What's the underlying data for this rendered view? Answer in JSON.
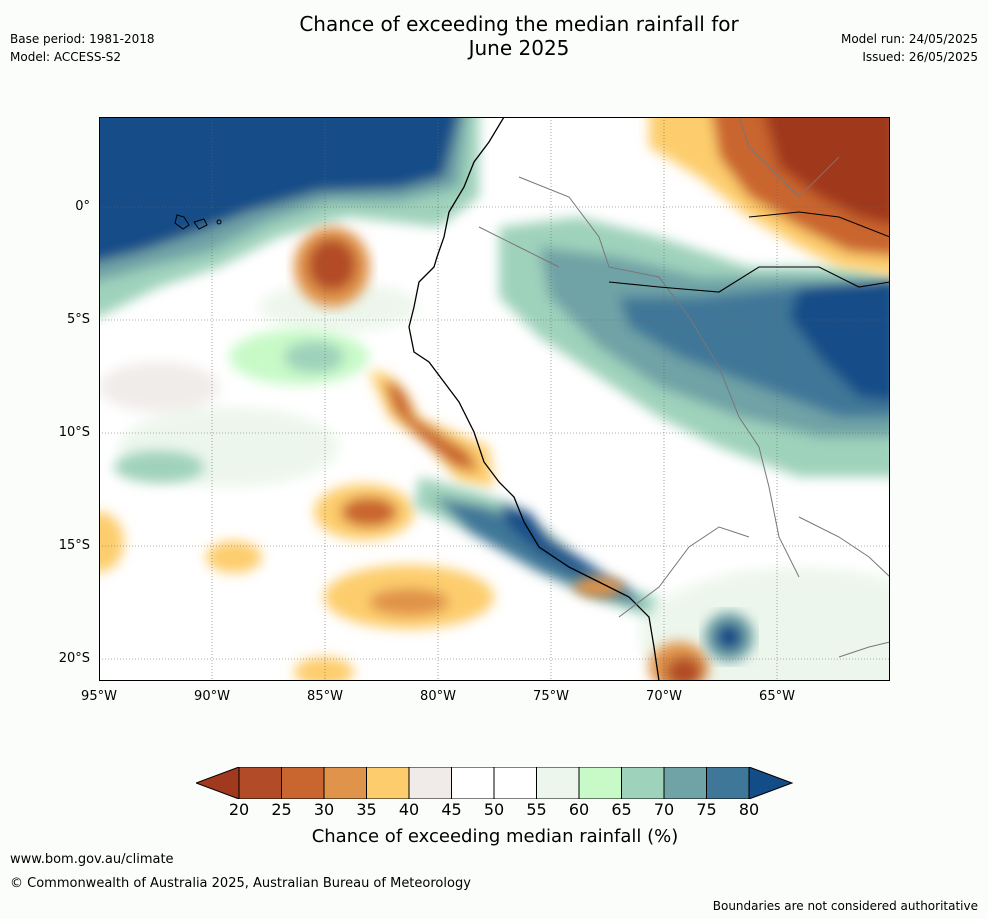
{
  "title_line1": "Chance of exceeding the median rainfall for",
  "title_line2": "June 2025",
  "meta": {
    "base_period": "Base period: 1981-2018",
    "model": "Model: ACCESS-S2",
    "model_run": "Model run: 24/05/2025",
    "issued": "Issued: 26/05/2025"
  },
  "map": {
    "lat_labels": [
      "0°",
      "5°S",
      "10°S",
      "15°S",
      "20°S"
    ],
    "lon_labels": [
      "95°W",
      "90°W",
      "85°W",
      "80°W",
      "75°W",
      "70°W",
      "65°W"
    ],
    "region": "Western South America / Eastern Pacific"
  },
  "colorbar": {
    "title": "Chance of exceeding median rainfall (%)",
    "labels": [
      "20",
      "25",
      "30",
      "35",
      "40",
      "45",
      "50",
      "55",
      "60",
      "65",
      "70",
      "75",
      "80"
    ],
    "colors": [
      "#a0391d",
      "#b24b27",
      "#c9652f",
      "#e0934a",
      "#fdcd6d",
      "#f0ebe9",
      "#ffffff",
      "#ffffff",
      "#ecf6ec",
      "#c8fac8",
      "#9fd2bb",
      "#6fa3a6",
      "#3f7798",
      "#134d88"
    ]
  },
  "footer": {
    "url": "www.bom.gov.au/climate",
    "copyright": "© Commonwealth of Australia 2025, Australian Bureau of Meteorology",
    "disclaimer": "Boundaries are not considered authoritative"
  }
}
